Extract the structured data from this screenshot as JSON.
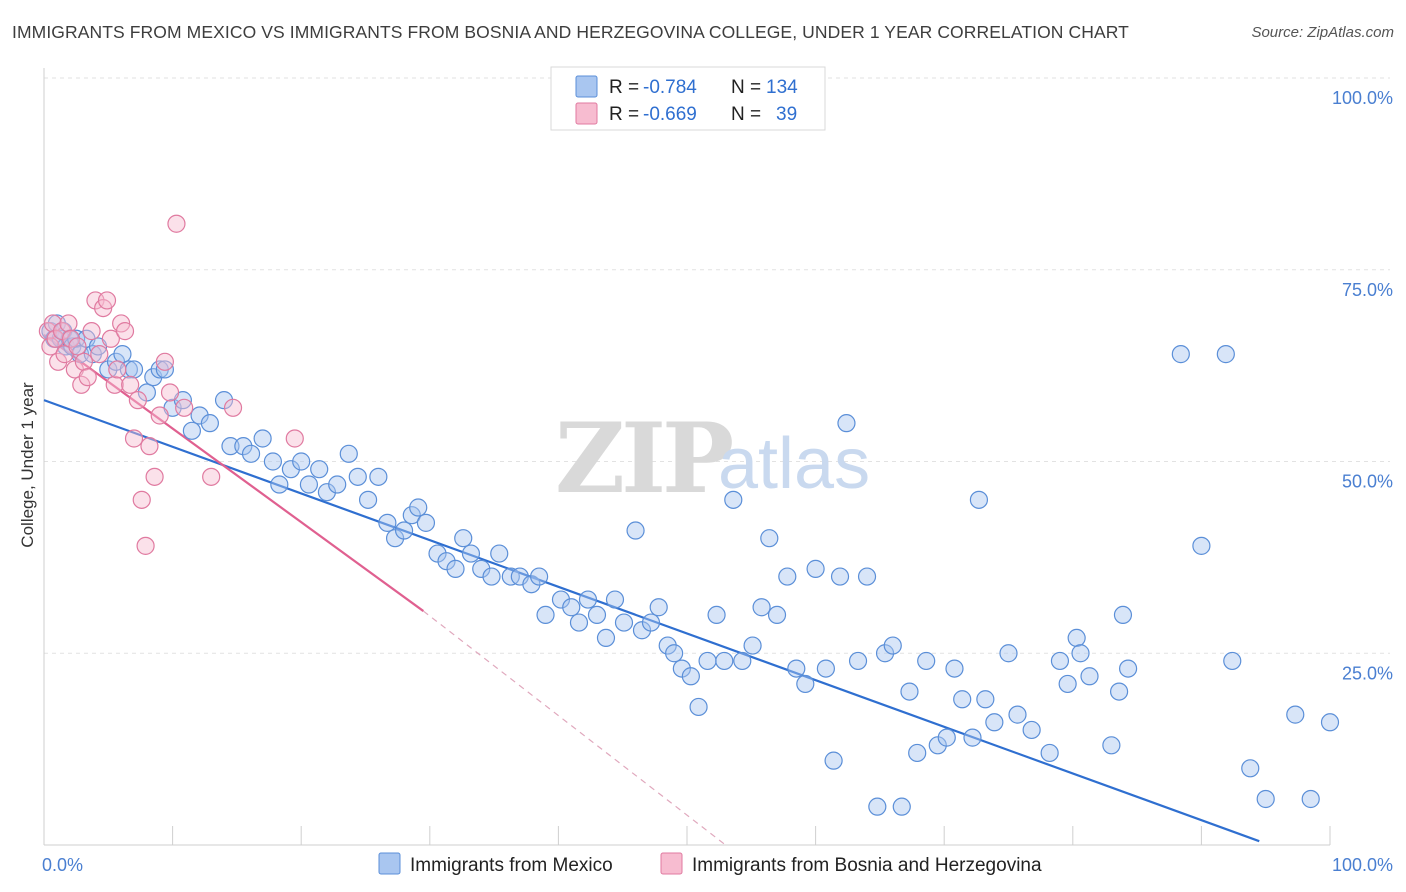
{
  "title": "IMMIGRANTS FROM MEXICO VS IMMIGRANTS FROM BOSNIA AND HERZEGOVINA COLLEGE, UNDER 1 YEAR CORRELATION CHART",
  "source": "Source: ZipAtlas.com",
  "watermark": {
    "zip": "ZIP",
    "atlas": "atlas"
  },
  "legend": {
    "r_label": "R =",
    "n_label": "N =",
    "rows": [
      {
        "r": "-0.784",
        "n": "134",
        "color": "#a9c6f0",
        "stroke": "#5b8fd8"
      },
      {
        "r": "-0.669",
        "n": "39",
        "color": "#f7bcd0",
        "stroke": "#e07aa0"
      }
    ]
  },
  "chart_data": {
    "type": "scatter",
    "xlabel": "",
    "ylabel": "College, Under 1 year",
    "xlim": [
      0,
      100
    ],
    "ylim": [
      0,
      100
    ],
    "x_tick_labels": [
      {
        "value": 0,
        "label": "0.0%"
      },
      {
        "value": 100,
        "label": "100.0%"
      }
    ],
    "y_tick_labels": [
      {
        "value": 25,
        "label": "25.0%"
      },
      {
        "value": 50,
        "label": "50.0%"
      },
      {
        "value": 75,
        "label": "75.0%"
      },
      {
        "value": 100,
        "label": "100.0%"
      }
    ],
    "grid": true,
    "legend_position": "top-center",
    "series": [
      {
        "name": "Immigrants from Mexico",
        "color": "#a9c6f0",
        "stroke": "#5b8fd8",
        "trend": {
          "x": [
            0,
            94.5
          ],
          "y": [
            58.0,
            0.5
          ],
          "color": "#2f6fd0"
        },
        "points": [
          [
            0.5,
            67
          ],
          [
            0.8,
            66
          ],
          [
            1.0,
            68
          ],
          [
            1.3,
            66
          ],
          [
            1.5,
            67
          ],
          [
            1.7,
            65
          ],
          [
            2.0,
            66
          ],
          [
            2.2,
            65
          ],
          [
            2.5,
            66
          ],
          [
            2.8,
            64
          ],
          [
            3.3,
            66
          ],
          [
            3.8,
            64
          ],
          [
            4.2,
            65
          ],
          [
            5.0,
            62
          ],
          [
            5.6,
            63
          ],
          [
            6.1,
            64
          ],
          [
            6.6,
            62
          ],
          [
            7.0,
            62
          ],
          [
            8.0,
            59
          ],
          [
            8.5,
            61
          ],
          [
            9.0,
            62
          ],
          [
            9.4,
            62
          ],
          [
            10.0,
            57
          ],
          [
            10.8,
            58
          ],
          [
            11.5,
            54
          ],
          [
            12.1,
            56
          ],
          [
            12.9,
            55
          ],
          [
            14.0,
            58
          ],
          [
            14.5,
            52
          ],
          [
            15.5,
            52
          ],
          [
            16.1,
            51
          ],
          [
            17.0,
            53
          ],
          [
            17.8,
            50
          ],
          [
            18.3,
            47
          ],
          [
            19.2,
            49
          ],
          [
            20.0,
            50
          ],
          [
            20.6,
            47
          ],
          [
            21.4,
            49
          ],
          [
            22.0,
            46
          ],
          [
            22.8,
            47
          ],
          [
            23.7,
            51
          ],
          [
            24.4,
            48
          ],
          [
            25.2,
            45
          ],
          [
            26.0,
            48
          ],
          [
            26.7,
            42
          ],
          [
            27.3,
            40
          ],
          [
            28.0,
            41
          ],
          [
            28.6,
            43
          ],
          [
            29.1,
            44
          ],
          [
            29.7,
            42
          ],
          [
            30.6,
            38
          ],
          [
            31.3,
            37
          ],
          [
            32.0,
            36
          ],
          [
            32.6,
            40
          ],
          [
            33.2,
            38
          ],
          [
            34.0,
            36
          ],
          [
            34.8,
            35
          ],
          [
            35.4,
            38
          ],
          [
            36.3,
            35
          ],
          [
            37.0,
            35
          ],
          [
            37.9,
            34
          ],
          [
            38.5,
            35
          ],
          [
            39.0,
            30
          ],
          [
            40.2,
            32
          ],
          [
            41.0,
            31
          ],
          [
            41.6,
            29
          ],
          [
            42.3,
            32
          ],
          [
            43.0,
            30
          ],
          [
            43.7,
            27
          ],
          [
            44.4,
            32
          ],
          [
            45.1,
            29
          ],
          [
            46.0,
            41
          ],
          [
            46.5,
            28
          ],
          [
            47.2,
            29
          ],
          [
            47.8,
            31
          ],
          [
            48.5,
            26
          ],
          [
            49.0,
            25
          ],
          [
            49.6,
            23
          ],
          [
            50.3,
            22
          ],
          [
            50.9,
            18
          ],
          [
            51.6,
            24
          ],
          [
            52.3,
            30
          ],
          [
            52.9,
            24
          ],
          [
            53.6,
            45
          ],
          [
            54.3,
            24
          ],
          [
            55.1,
            26
          ],
          [
            55.8,
            31
          ],
          [
            56.4,
            40
          ],
          [
            57.0,
            30
          ],
          [
            57.8,
            35
          ],
          [
            58.5,
            23
          ],
          [
            59.2,
            21
          ],
          [
            60.0,
            36
          ],
          [
            60.8,
            23
          ],
          [
            61.4,
            11
          ],
          [
            61.9,
            35
          ],
          [
            62.4,
            55
          ],
          [
            63.3,
            24
          ],
          [
            64.0,
            35
          ],
          [
            64.8,
            5
          ],
          [
            65.4,
            25
          ],
          [
            66.0,
            26
          ],
          [
            66.7,
            5
          ],
          [
            67.3,
            20
          ],
          [
            67.9,
            12
          ],
          [
            68.6,
            24
          ],
          [
            69.5,
            13
          ],
          [
            70.2,
            14
          ],
          [
            70.8,
            23
          ],
          [
            71.4,
            19
          ],
          [
            72.2,
            14
          ],
          [
            72.7,
            45
          ],
          [
            73.2,
            19
          ],
          [
            73.9,
            16
          ],
          [
            75.0,
            25
          ],
          [
            75.7,
            17
          ],
          [
            76.8,
            15
          ],
          [
            78.2,
            12
          ],
          [
            79.0,
            24
          ],
          [
            79.6,
            21
          ],
          [
            80.3,
            27
          ],
          [
            80.6,
            25
          ],
          [
            81.3,
            22
          ],
          [
            83.0,
            13
          ],
          [
            83.6,
            20
          ],
          [
            83.9,
            30
          ],
          [
            84.3,
            23
          ],
          [
            88.4,
            64
          ],
          [
            90.0,
            39
          ],
          [
            91.9,
            64
          ],
          [
            92.4,
            24
          ],
          [
            93.8,
            10
          ],
          [
            97.3,
            17
          ],
          [
            100.0,
            16
          ],
          [
            95.0,
            6
          ],
          [
            98.5,
            6
          ]
        ]
      },
      {
        "name": "Immigrants from Bosnia and Herzegovina",
        "color": "#f7bcd0",
        "stroke": "#e07aa0",
        "trend": {
          "x": [
            0,
            29.5
          ],
          "y": [
            66.5,
            30.5
          ],
          "color": "#e06090"
        },
        "trend_ext": {
          "x": [
            29.5,
            53.0
          ],
          "y": [
            30.5,
            0.0
          ]
        },
        "points": [
          [
            0.3,
            67
          ],
          [
            0.5,
            65
          ],
          [
            0.7,
            68
          ],
          [
            0.9,
            66
          ],
          [
            1.1,
            63
          ],
          [
            1.4,
            67
          ],
          [
            1.6,
            64
          ],
          [
            1.9,
            68
          ],
          [
            2.1,
            66
          ],
          [
            2.4,
            62
          ],
          [
            2.6,
            65
          ],
          [
            2.9,
            60
          ],
          [
            3.1,
            63
          ],
          [
            3.4,
            61
          ],
          [
            3.7,
            67
          ],
          [
            4.0,
            71
          ],
          [
            4.3,
            64
          ],
          [
            4.6,
            70
          ],
          [
            4.9,
            71
          ],
          [
            5.2,
            66
          ],
          [
            5.5,
            60
          ],
          [
            5.7,
            62
          ],
          [
            6.0,
            68
          ],
          [
            6.3,
            67
          ],
          [
            6.7,
            60
          ],
          [
            7.0,
            53
          ],
          [
            7.3,
            58
          ],
          [
            7.6,
            45
          ],
          [
            7.9,
            39
          ],
          [
            8.2,
            52
          ],
          [
            8.6,
            48
          ],
          [
            9.0,
            56
          ],
          [
            9.4,
            63
          ],
          [
            9.8,
            59
          ],
          [
            10.3,
            81
          ],
          [
            10.9,
            57
          ],
          [
            13.0,
            48
          ],
          [
            14.7,
            57
          ],
          [
            19.5,
            53
          ]
        ]
      }
    ]
  },
  "bottom_legend": [
    {
      "label": "Immigrants from Mexico",
      "color": "#a9c6f0",
      "stroke": "#5b8fd8"
    },
    {
      "label": "Immigrants from Bosnia and Herzegovina",
      "color": "#f7bcd0",
      "stroke": "#e07aa0"
    }
  ]
}
